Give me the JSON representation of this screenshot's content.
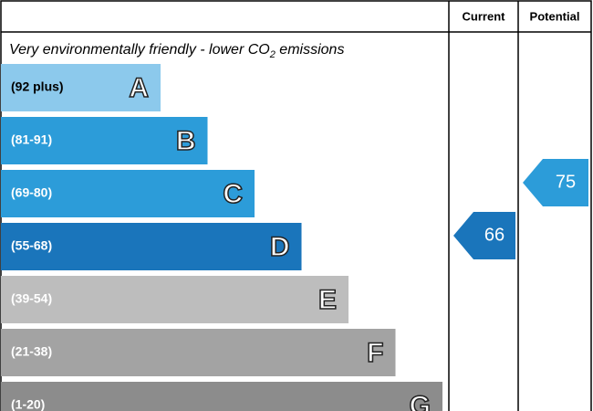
{
  "header": {
    "current": "Current",
    "potential": "Potential"
  },
  "subtitle": {
    "text": "Very environmentally friendly - lower CO",
    "subscript": "2",
    "suffix": " emissions"
  },
  "bands": [
    {
      "range": "(92 plus)",
      "letter": "A",
      "color": "#8cc9ec"
    },
    {
      "range": "(81-91)",
      "letter": "B",
      "color": "#2c9cd9"
    },
    {
      "range": "(69-80)",
      "letter": "C",
      "color": "#2c9cd9"
    },
    {
      "range": "(55-68)",
      "letter": "D",
      "color": "#1a75bb"
    },
    {
      "range": "(39-54)",
      "letter": "E",
      "color": "#bdbdbd"
    },
    {
      "range": "(21-38)",
      "letter": "F",
      "color": "#a3a3a3"
    },
    {
      "range": "(1-20)",
      "letter": "G",
      "color": "#8c8c8c"
    }
  ],
  "current": 66,
  "potential": 75
}
